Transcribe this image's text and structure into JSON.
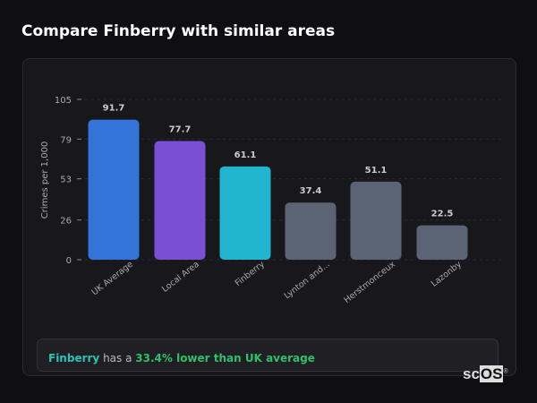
{
  "title": "Compare Finberry with similar areas",
  "chart_data": {
    "type": "bar",
    "categories": [
      "UK Average",
      "Local Area",
      "Finberry",
      "Lynton and...",
      "Herstmonceux",
      "Lazonby"
    ],
    "values": [
      91.7,
      77.7,
      61.1,
      37.4,
      51.1,
      22.5
    ],
    "value_labels": [
      "91.7",
      "77.7",
      "61.1",
      "37.4",
      "51.1",
      "22.5"
    ],
    "colors": [
      "#3474d9",
      "#7a4fd4",
      "#22b5cf",
      "#5b6475",
      "#5b6475",
      "#5b6475"
    ],
    "ylabel": "Crimes per 1,000",
    "yticks": [
      "0",
      "26",
      "53",
      "79",
      "105"
    ],
    "ylim": [
      0,
      105
    ],
    "grid": true
  },
  "note": {
    "area": "Finberry",
    "middle": " has a ",
    "highlight": "33.4% lower than UK average"
  },
  "logo": {
    "prefix": "sc",
    "box": "OS",
    "mark": "®"
  }
}
